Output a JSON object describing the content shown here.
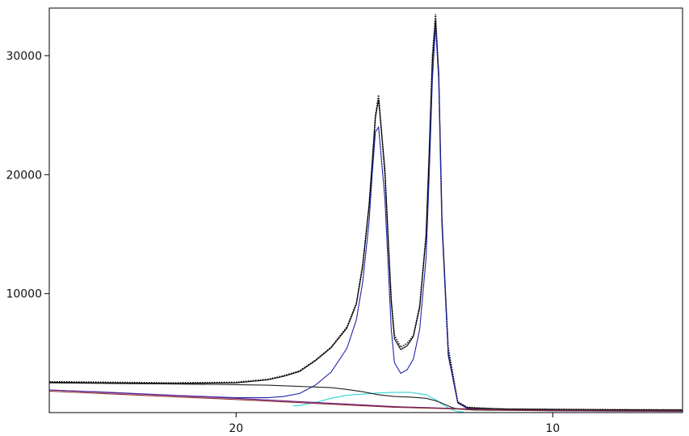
{
  "chart_data": {
    "type": "line",
    "title": "",
    "xlabel": "",
    "ylabel": "",
    "x_reversed": true,
    "xlim": [
      25.9,
      5.9
    ],
    "ylim": [
      0,
      34000
    ],
    "x_ticks": [
      20,
      10
    ],
    "x_tick_labels": [
      "20",
      "10"
    ],
    "y_ticks": [
      10000,
      20000,
      30000
    ],
    "y_tick_labels": [
      "10000",
      "20000",
      "30000"
    ],
    "grid": false,
    "legend": "none",
    "series": [
      {
        "kind": "observed-points",
        "color": "#000000",
        "x": [
          25.9,
          24,
          22,
          20,
          19,
          18.5,
          18,
          17.5,
          17,
          16.5,
          16.2,
          16,
          15.8,
          15.7,
          15.6,
          15.5,
          15.3,
          15.1,
          15.0,
          14.8,
          14.6,
          14.4,
          14.2,
          14.0,
          13.9,
          13.8,
          13.7,
          13.6,
          13.5,
          13.3,
          13.0,
          12.7,
          12.4,
          12.0,
          11.5,
          10,
          8,
          5.9
        ],
        "y": [
          2600,
          2550,
          2500,
          2550,
          2800,
          3100,
          3500,
          4400,
          5500,
          7200,
          9200,
          12500,
          17500,
          21000,
          25000,
          26700,
          20000,
          9500,
          6500,
          5500,
          5800,
          6500,
          9000,
          15000,
          22000,
          30000,
          33500,
          28000,
          16000,
          5500,
          900,
          450,
          400,
          350,
          300,
          280,
          250,
          230
        ]
      },
      {
        "kind": "total-fit",
        "color": "#000000",
        "x": [
          25.9,
          24,
          22,
          20,
          19,
          18.5,
          18,
          17.5,
          17,
          16.5,
          16.2,
          16,
          15.8,
          15.7,
          15.6,
          15.5,
          15.3,
          15.1,
          15.0,
          14.8,
          14.6,
          14.4,
          14.2,
          14.0,
          13.9,
          13.8,
          13.7,
          13.6,
          13.5,
          13.3,
          13.0,
          12.7,
          12.4,
          12.0,
          11.5,
          10,
          8,
          5.9
        ],
        "y": [
          2550,
          2500,
          2450,
          2500,
          2750,
          3050,
          3450,
          4350,
          5450,
          7100,
          9100,
          12300,
          17300,
          21000,
          24800,
          26300,
          20500,
          9300,
          6200,
          5300,
          5600,
          6400,
          8800,
          14800,
          21800,
          29500,
          33000,
          28500,
          16500,
          5000,
          850,
          420,
          380,
          340,
          300,
          270,
          240,
          220
        ]
      },
      {
        "kind": "peak-component",
        "color": "#1f24a8",
        "x": [
          25.9,
          24,
          22,
          20,
          19,
          18.5,
          18,
          17.5,
          17,
          16.5,
          16.2,
          16,
          15.8,
          15.7,
          15.6,
          15.5,
          15.3,
          15.1,
          15.0,
          14.8,
          14.6,
          14.4,
          14.2,
          14.0,
          13.9,
          13.8,
          13.7,
          13.6,
          13.5,
          13.3,
          13.0,
          12.7,
          12.4,
          12.0,
          11.5,
          10,
          8,
          5.9
        ],
        "y": [
          1900,
          1700,
          1450,
          1250,
          1250,
          1350,
          1600,
          2300,
          3400,
          5400,
          7800,
          11000,
          16000,
          20000,
          23600,
          24000,
          18000,
          7000,
          4200,
          3300,
          3600,
          4500,
          7000,
          13000,
          20000,
          28000,
          32500,
          28000,
          16000,
          4800,
          800,
          350,
          300,
          250,
          200,
          150,
          120,
          100
        ]
      },
      {
        "kind": "peak-component",
        "color": "#2fd6d6",
        "x": [
          18.2,
          18.0,
          17.5,
          17.0,
          16.5,
          16.0,
          15.5,
          15.0,
          14.5,
          14.0,
          13.7,
          13.5,
          13.2,
          13.0,
          12.8
        ],
        "y": [
          550,
          600,
          850,
          1200,
          1450,
          1550,
          1650,
          1700,
          1700,
          1500,
          1100,
          700,
          250,
          100,
          40
        ]
      },
      {
        "kind": "background",
        "color": "#222222",
        "x": [
          25.9,
          24,
          22,
          20,
          19,
          18.5,
          18,
          17.5,
          17,
          16.5,
          16.0,
          15.5,
          15.0,
          14.5,
          14.0,
          13.7,
          13.5,
          13.2,
          13.0,
          12.5,
          12.0,
          10,
          8,
          5.9
        ],
        "y": [
          2500,
          2450,
          2400,
          2350,
          2300,
          2250,
          2200,
          2150,
          2100,
          1950,
          1750,
          1500,
          1350,
          1300,
          1200,
          1000,
          800,
          450,
          300,
          220,
          200,
          180,
          170,
          160
        ]
      },
      {
        "kind": "baseline",
        "color": "#6a1a8a",
        "x": [
          25.9,
          20,
          15,
          12,
          10,
          5.9
        ],
        "y": [
          1900,
          1200,
          500,
          250,
          180,
          150
        ]
      },
      {
        "kind": "baseline",
        "color": "#8a2a2a",
        "x": [
          25.9,
          20,
          15,
          12,
          10,
          5.9
        ],
        "y": [
          1800,
          1100,
          450,
          230,
          160,
          140
        ]
      }
    ]
  }
}
